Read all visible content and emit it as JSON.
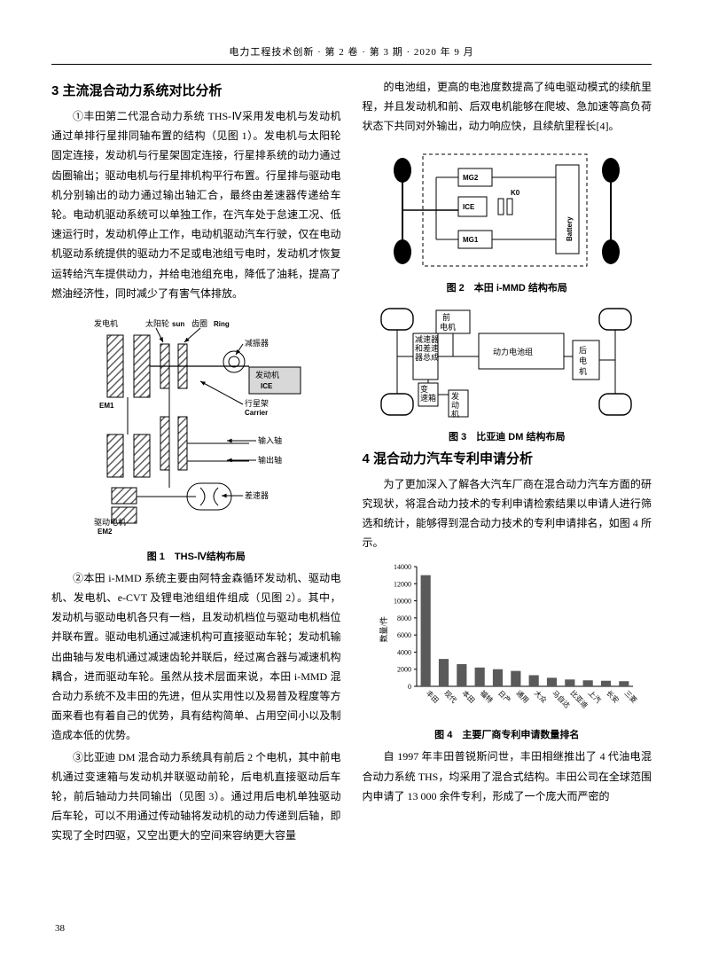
{
  "header": {
    "text": "电力工程技术创新 · 第 2 卷 · 第 3 期 · 2020 年 9 月"
  },
  "left": {
    "section3_title": "3 主流混合动力系统对比分析",
    "p1": "①丰田第二代混合动力系统 THS-Ⅳ采用发电机与发动机通过单排行星排同轴布置的结构（见图 1）。发电机与太阳轮固定连接，发动机与行星架固定连接，行星排系统的动力通过齿圈输出；驱动电机与行星排机构平行布置。行星排与驱动电机分别输出的动力通过输出轴汇合，最终由差速器传递给车轮。电动机驱动系统可以单独工作，在汽车处于怠速工况、低速运行时，发动机停止工作，电动机驱动汽车行驶，仅在电动机驱动系统提供的驱动力不足或电池组亏电时，发动机才恢复运转给汽车提供动力，并给电池组充电，降低了油耗，提高了燃油经济性，同时减少了有害气体排放。",
    "fig1": {
      "caption": "图 1　THS-Ⅳ结构布局",
      "labels": {
        "gen": "发电机",
        "em1": "EM1",
        "sun_cn": "太阳轮",
        "sun_en": "sun",
        "ring_cn": "齿圈",
        "ring_en": "Ring",
        "damper": "减振器",
        "ice_cn": "发动机",
        "ice_en": "ICE",
        "carrier_cn": "行星架",
        "carrier_en": "Carrier",
        "input": "输入轴",
        "output": "输出轴",
        "diff": "差速器",
        "drive": "驱动电机",
        "em2": "EM2"
      },
      "hatch_color": "#606060",
      "line_color": "#000000"
    },
    "p2": "②本田 i-MMD 系统主要由阿特金森循环发动机、驱动电机、发电机、e-CVT 及锂电池组组件组成（见图 2）。其中，发动机与驱动电机各只有一档，且发动机档位与驱动电机档位并联布置。驱动电机通过减速机构可直接驱动车轮；发动机输出曲轴与发电机通过减速齿轮并联后，经过离合器与减速机构耦合，进而驱动车轮。虽然从技术层面来说，本田 i-MMD 混合动力系统不及丰田的先进，但从实用性以及易普及程度等方面来看也有着自己的优势，具有结构简单、占用空间小以及制造成本低的优势。",
    "p3": "③比亚迪 DM 混合动力系统具有前后 2 个电机，其中前电机通过变速箱与发动机并联驱动前轮，后电机直接驱动后车轮，前后轴动力共同输出（见图 3）。通过用后电机单独驱动后车轮，可以不用通过传动轴将发动机的动力传递到后轴，即实现了全时四驱，又空出更大的空间来容纳更大容量"
  },
  "right": {
    "p_top": "的电池组，更高的电池度数提高了纯电驱动模式的续航里程，并且发动机和前、后双电机能够在爬坡、急加速等高负荷状态下共同对外输出，动力响应快，且续航里程长[4]。",
    "fig2": {
      "caption": "图 2　本田 i-MMD 结构布局",
      "labels": {
        "mg1": "MG1",
        "mg2": "MG2",
        "ice": "ICE",
        "k0": "K0",
        "battery": "Battery"
      },
      "line_color": "#000000",
      "fill_gray": "#cfcfcf"
    },
    "fig3": {
      "caption": "图 3　比亚迪 DM 结构布局",
      "labels": {
        "front_motor": "前电机",
        "rear_motor": "后电机",
        "battery": "动力电池组",
        "reducer": "减速器和差速器总成",
        "gearbox": "变速箱",
        "engine": "发动机"
      },
      "line_color": "#000000"
    },
    "section4_title": "4 混合动力汽车专利申请分析",
    "p4": "为了更加深入了解各大汽车厂商在混合动力汽车方面的研究现状，将混合动力技术的专利申请检索结果以申请人进行筛选和统计，能够得到混合动力技术的专利申请排名，如图 4 所示。",
    "fig4": {
      "caption": "图 4　主要厂商专利申请数量排名",
      "type": "bar",
      "ylabel": "数量/件",
      "ylim": [
        0,
        14000
      ],
      "ytick_step": 2000,
      "categories": [
        "丰田",
        "现代",
        "本田",
        "福特",
        "日产",
        "通用",
        "大众",
        "马自达",
        "比亚迪",
        "上汽",
        "长安",
        "三菱"
      ],
      "values": [
        13000,
        3200,
        2600,
        2200,
        2000,
        1800,
        1300,
        1000,
        800,
        700,
        650,
        600
      ],
      "bar_color": "#5a5a5a",
      "axis_color": "#000000",
      "background_color": "#ffffff",
      "bar_width": 0.55,
      "label_fontsize": 9
    },
    "p5": "自 1997 年丰田普锐斯问世，丰田相继推出了 4 代油电混合动力系统 THS，均采用了混合式结构。丰田公司在全球范围内申请了 13 000 余件专利，形成了一个庞大而严密的"
  },
  "page_number": "38"
}
